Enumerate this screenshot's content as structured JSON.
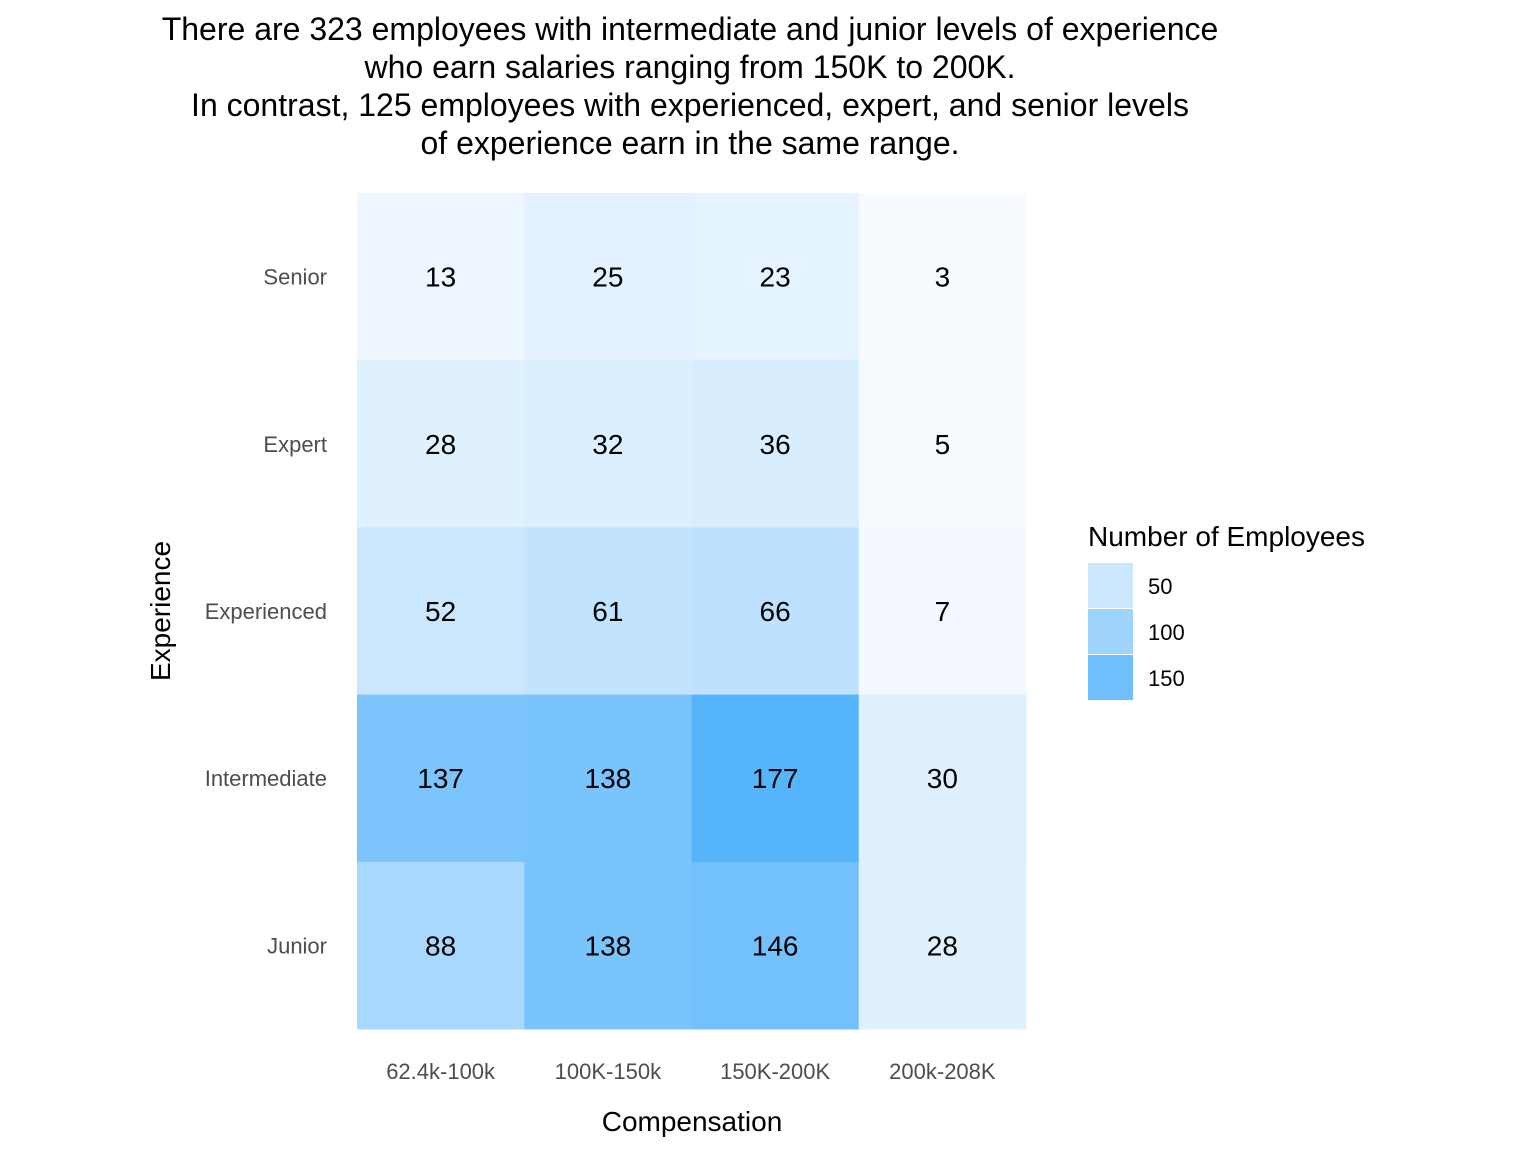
{
  "chart_data": {
    "type": "heatmap",
    "title_lines": [
      "There are 323 employees with intermediate and junior levels of experience",
      "who earn salaries ranging from 150K to 200K.",
      "In contrast, 125 employees with experienced, expert, and senior levels",
      "of experience earn in the same range."
    ],
    "xlabel": "Compensation",
    "ylabel": "Experience",
    "x_categories": [
      "62.4k-100k",
      "100K-150k",
      "150K-200K",
      "200k-208K"
    ],
    "y_categories": [
      "Senior",
      "Expert",
      "Experienced",
      "Intermediate",
      "Junior"
    ],
    "values": [
      [
        13,
        25,
        23,
        3
      ],
      [
        28,
        32,
        36,
        5
      ],
      [
        52,
        61,
        66,
        7
      ],
      [
        137,
        138,
        177,
        30
      ],
      [
        88,
        138,
        146,
        28
      ]
    ],
    "color_scale": {
      "low": "#f7fbff",
      "high": "#56b4fb",
      "min": 3,
      "max": 177
    },
    "legend": {
      "title": "Number of Employees",
      "entries": [
        {
          "label": "50",
          "value": 50
        },
        {
          "label": "100",
          "value": 100
        },
        {
          "label": "150",
          "value": 150
        }
      ],
      "placement": "right"
    }
  }
}
